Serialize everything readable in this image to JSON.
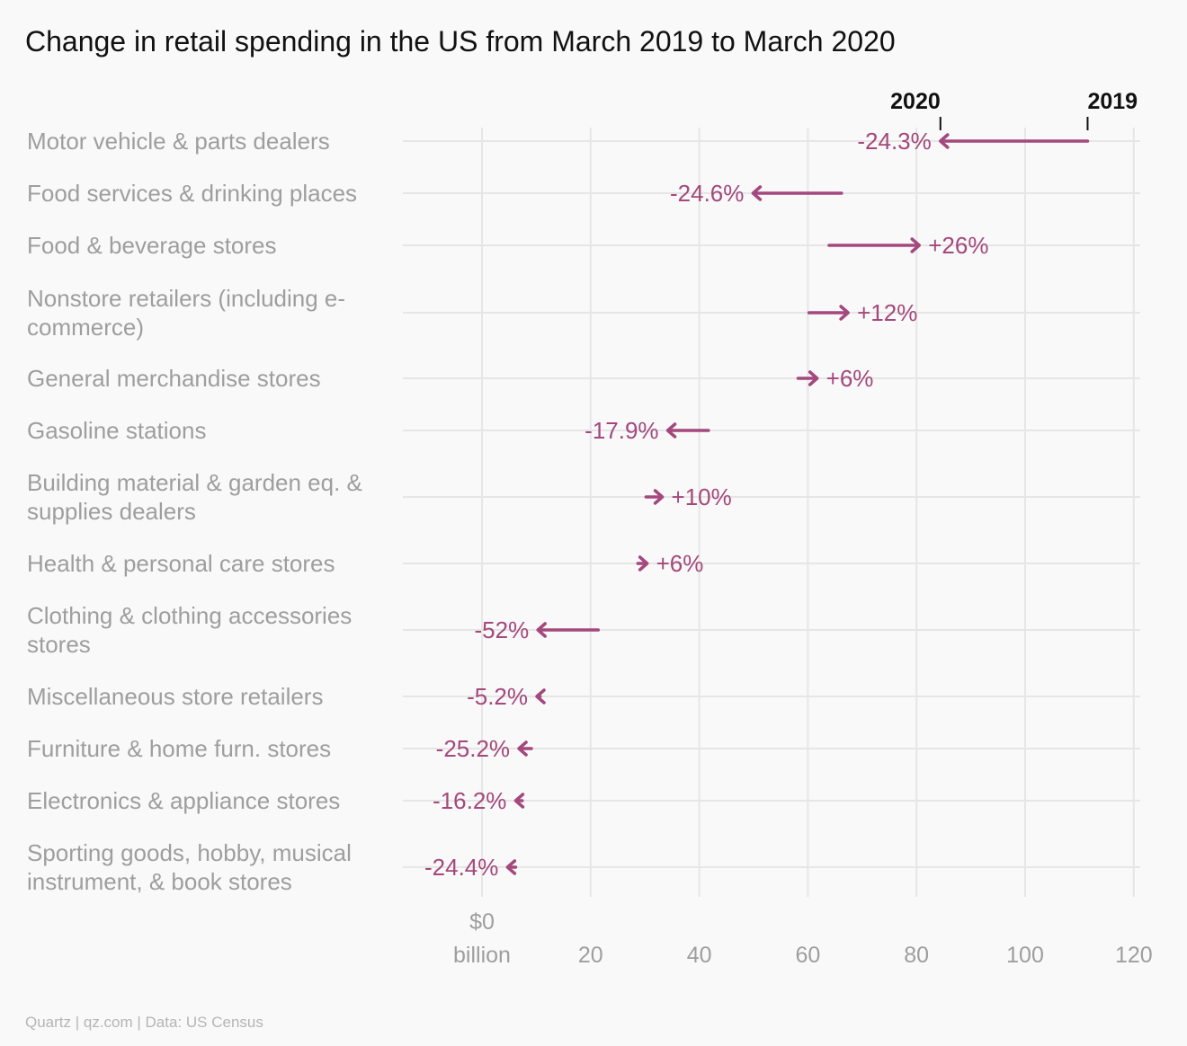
{
  "title": "Change in retail spending in the US from March 2019 to March 2020",
  "footer": "Quartz | qz.com | Data: US Census",
  "colors": {
    "arrow": "#a4487d",
    "grid": "#e6e6e6",
    "label": "#9e9e9e",
    "text": "#111111"
  },
  "chart_data": {
    "type": "arrow",
    "title": "Change in retail spending in the US from March 2019 to March 2020",
    "legend": {
      "start": "2019",
      "end": "2020",
      "placement": "top-right"
    },
    "x_unit": "$ billion",
    "xlim": [
      -15,
      120
    ],
    "x_ticks": [
      {
        "value": 0,
        "label": "$0",
        "label2": "billion"
      },
      {
        "value": 20,
        "label": "20"
      },
      {
        "value": 40,
        "label": "40"
      },
      {
        "value": 60,
        "label": "60"
      },
      {
        "value": 80,
        "label": "80"
      },
      {
        "value": 100,
        "label": "100"
      },
      {
        "value": 120,
        "label": "120"
      }
    ],
    "categories": [
      {
        "lines": [
          "Motor vehicle & parts dealers"
        ],
        "v2019": 111.5,
        "v2020": 84.4,
        "change": "-24.3%"
      },
      {
        "lines": [
          "Food services & drinking places"
        ],
        "v2019": 66.2,
        "v2020": 49.9,
        "change": "-24.6%"
      },
      {
        "lines": [
          "Food & beverage stores"
        ],
        "v2019": 63.9,
        "v2020": 80.5,
        "change": "+26%"
      },
      {
        "lines": [
          "Nonstore retailers (including e-",
          "commerce)"
        ],
        "v2019": 60.2,
        "v2020": 67.4,
        "change": "+12%"
      },
      {
        "lines": [
          "General merchandise stores"
        ],
        "v2019": 58.2,
        "v2020": 61.7,
        "change": "+6%"
      },
      {
        "lines": [
          "Gasoline stations"
        ],
        "v2019": 41.7,
        "v2020": 34.2,
        "change": "-17.9%"
      },
      {
        "lines": [
          "Building material & garden eq. &",
          "supplies dealers"
        ],
        "v2019": 30.2,
        "v2020": 33.2,
        "change": "+10%"
      },
      {
        "lines": [
          "Health & personal care stores"
        ],
        "v2019": 28.7,
        "v2020": 30.4,
        "change": "+6%"
      },
      {
        "lines": [
          "Clothing & clothing accessories",
          "stores"
        ],
        "v2019": 21.4,
        "v2020": 10.3,
        "change": "-52%"
      },
      {
        "lines": [
          "Miscellaneous store retailers"
        ],
        "v2019": 10.7,
        "v2020": 10.1,
        "change": "-5.2%"
      },
      {
        "lines": [
          "Furniture & home furn. stores"
        ],
        "v2019": 9.1,
        "v2020": 6.8,
        "change": "-25.2%"
      },
      {
        "lines": [
          "Electronics & appliance stores"
        ],
        "v2019": 7.4,
        "v2020": 6.2,
        "change": "-16.2%"
      },
      {
        "lines": [
          "Sporting goods, hobby, musical",
          "instrument, & book stores"
        ],
        "v2019": 6.2,
        "v2020": 4.7,
        "change": "-24.4%"
      }
    ]
  }
}
